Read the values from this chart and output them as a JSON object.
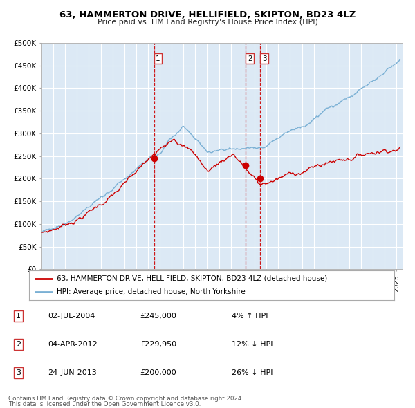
{
  "title": "63, HAMMERTON DRIVE, HELLIFIELD, SKIPTON, BD23 4LZ",
  "subtitle": "Price paid vs. HM Land Registry's House Price Index (HPI)",
  "background_color": "#dce9f5",
  "plot_bg_color": "#dce9f5",
  "grid_color": "#ffffff",
  "red_line_color": "#cc0000",
  "blue_line_color": "#7ab0d4",
  "x_start_year": 1995,
  "x_end_year": 2025,
  "y_min": 0,
  "y_max": 500000,
  "y_ticks": [
    0,
    50000,
    100000,
    150000,
    200000,
    250000,
    300000,
    350000,
    400000,
    450000,
    500000
  ],
  "y_tick_labels": [
    "£0",
    "£50K",
    "£100K",
    "£150K",
    "£200K",
    "£250K",
    "£300K",
    "£350K",
    "£400K",
    "£450K",
    "£500K"
  ],
  "sale1_date": 2004.5,
  "sale1_price": 245000,
  "sale1_label": "1",
  "sale2_date": 2012.25,
  "sale2_price": 229950,
  "sale2_label": "2",
  "sale3_date": 2013.47,
  "sale3_price": 200000,
  "sale3_label": "3",
  "legend_red": "63, HAMMERTON DRIVE, HELLIFIELD, SKIPTON, BD23 4LZ (detached house)",
  "legend_blue": "HPI: Average price, detached house, North Yorkshire",
  "table_rows": [
    [
      "1",
      "02-JUL-2004",
      "£245,000",
      "4% ↑ HPI"
    ],
    [
      "2",
      "04-APR-2012",
      "£229,950",
      "12% ↓ HPI"
    ],
    [
      "3",
      "24-JUN-2013",
      "£200,000",
      "26% ↓ HPI"
    ]
  ],
  "footer1": "Contains HM Land Registry data © Crown copyright and database right 2024.",
  "footer2": "This data is licensed under the Open Government Licence v3.0."
}
